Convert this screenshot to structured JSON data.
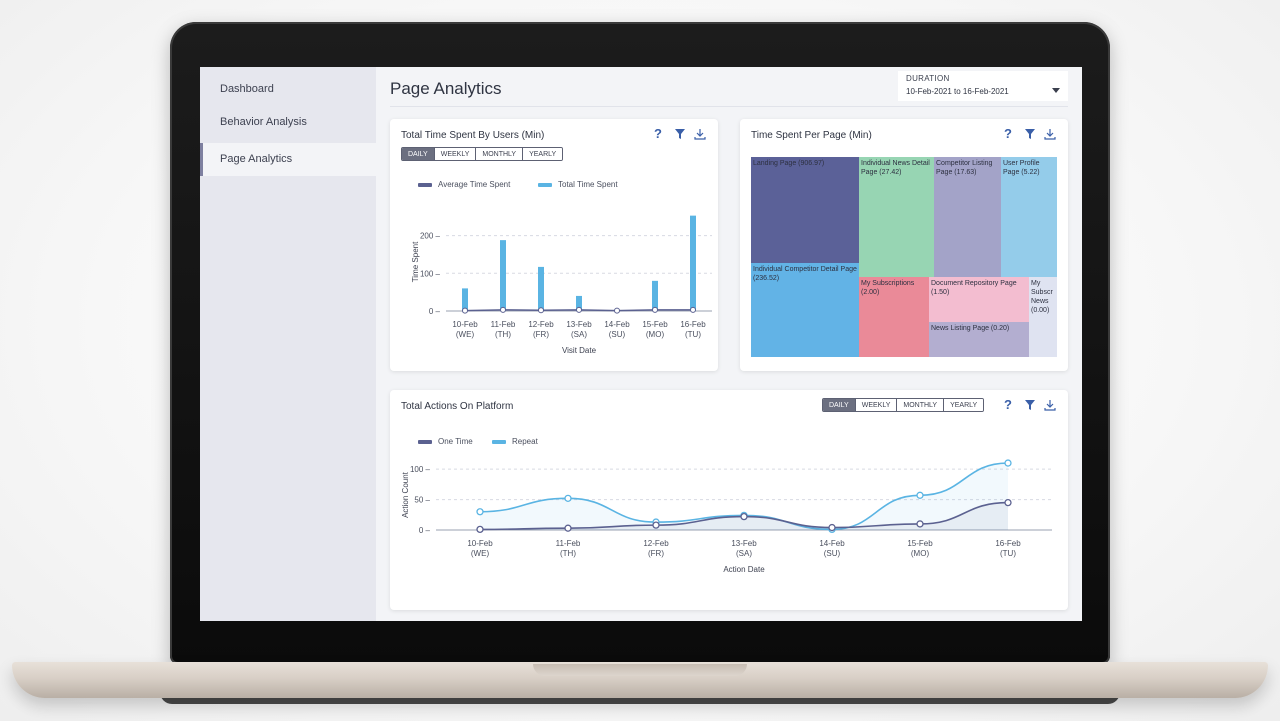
{
  "sidebar": {
    "items": [
      {
        "label": "Dashboard"
      },
      {
        "label": "Behavior Analysis"
      },
      {
        "label": "Page Analytics"
      }
    ]
  },
  "header": {
    "title": "Page Analytics",
    "duration_label": "DURATION",
    "duration_value": "10-Feb-2021 to 16-Feb-2021"
  },
  "range_tabs": [
    "DAILY",
    "WEEKLY",
    "MONTHLY",
    "YEARLY"
  ],
  "colors": {
    "dark_series": "#5b6190",
    "light_series": "#5ab4e3",
    "help_icon": "#3a5fa8"
  },
  "time_spent_card": {
    "title": "Total Time Spent By Users (Min)",
    "active_tab": "DAILY"
  },
  "page_card": {
    "title": "Time Spent Per Page (Min)"
  },
  "actions_card": {
    "title": "Total Actions On Platform",
    "active_tab": "DAILY"
  },
  "chart_data": [
    {
      "type": "bar",
      "title": "Total Time Spent By Users (Min)",
      "xlabel": "Visit Date",
      "ylabel": "Time Spent",
      "categories": [
        [
          "10-Feb",
          "(WE)"
        ],
        [
          "11-Feb",
          "(TH)"
        ],
        [
          "12-Feb",
          "(FR)"
        ],
        [
          "13-Feb",
          "(SA)"
        ],
        [
          "14-Feb",
          "(SU)"
        ],
        [
          "15-Feb",
          "(MO)"
        ],
        [
          "16-Feb",
          "(TU)"
        ]
      ],
      "yticks": [
        0,
        100,
        200
      ],
      "ylim": [
        0,
        260
      ],
      "grid": true,
      "legend": "top",
      "series": [
        {
          "name": "Average Time Spent",
          "kind": "line",
          "color": "#5b6190",
          "values": [
            1,
            3,
            2,
            3,
            1,
            3,
            3
          ]
        },
        {
          "name": "Total Time Spent",
          "kind": "bar",
          "color": "#5ab4e3",
          "values": [
            60,
            188,
            117,
            40,
            3,
            80,
            253
          ]
        }
      ]
    },
    {
      "type": "treemap",
      "title": "Time Spent Per Page (Min)",
      "items": [
        {
          "label": "Landing Page (906.97)",
          "color": "#5b6198"
        },
        {
          "label": "Individual Competitor Detail Page (236.52)",
          "color": "#62b3e6"
        },
        {
          "label": "Individual News Detail Page (27.42)",
          "color": "#97d5b3"
        },
        {
          "label": "Competitor Listing Page (17.63)",
          "color": "#a3a3c8"
        },
        {
          "label": "User Profile Page (5.22)",
          "color": "#94ccea"
        },
        {
          "label": "My Subscriptions (2.00)",
          "color": "#ea8a98"
        },
        {
          "label": "Document Repository Page (1.50)",
          "color": "#f3bdd0"
        },
        {
          "label": "News Listing Page (0.20)",
          "color": "#b3aed0"
        },
        {
          "label": "My Subscr News (0.00)",
          "color": "#dfe3f1"
        }
      ]
    },
    {
      "type": "line",
      "title": "Total Actions On Platform",
      "xlabel": "Action Date",
      "ylabel": "Action Count",
      "categories": [
        [
          "10-Feb",
          "(WE)"
        ],
        [
          "11-Feb",
          "(TH)"
        ],
        [
          "12-Feb",
          "(FR)"
        ],
        [
          "13-Feb",
          "(SA)"
        ],
        [
          "14-Feb",
          "(SU)"
        ],
        [
          "15-Feb",
          "(MO)"
        ],
        [
          "16-Feb",
          "(TU)"
        ]
      ],
      "yticks": [
        0,
        50,
        100
      ],
      "ylim": [
        0,
        115
      ],
      "grid": true,
      "legend": "top",
      "series": [
        {
          "name": "One Time",
          "color": "#5b6190",
          "values": [
            1,
            3,
            8,
            22,
            4,
            10,
            45
          ]
        },
        {
          "name": "Repeat",
          "color": "#5ab4e3",
          "values": [
            30,
            52,
            13,
            24,
            1,
            57,
            110
          ]
        }
      ]
    }
  ]
}
